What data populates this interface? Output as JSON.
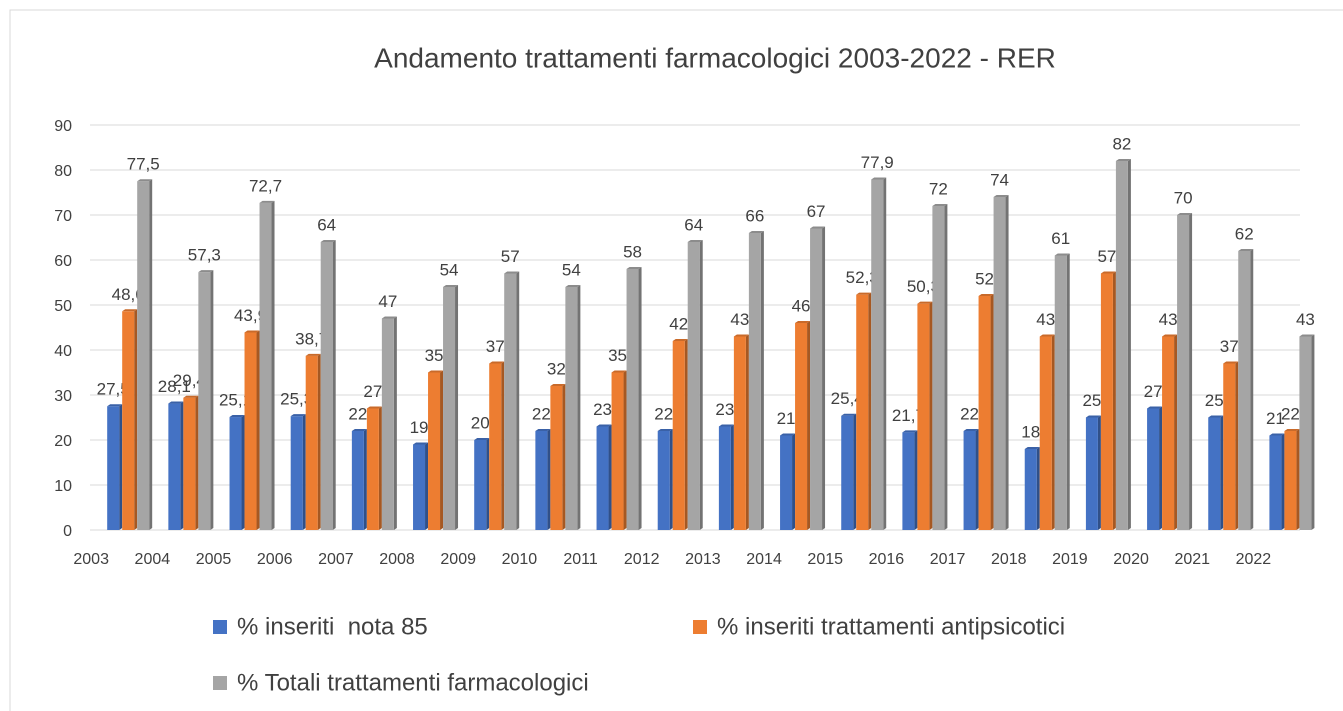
{
  "chart_data": {
    "type": "bar",
    "title": "Andamento trattamenti farmacologici 2003-2022 - RER",
    "categories": [
      "2003",
      "2004",
      "2005",
      "2006",
      "2007",
      "2008",
      "2009",
      "2010",
      "2011",
      "2012",
      "2013",
      "2014",
      "2015",
      "2016",
      "2017",
      "2018",
      "2019",
      "2020",
      "2021",
      "2022"
    ],
    "series": [
      {
        "name": "% inseriti  nota 85",
        "color": "#4472c4",
        "values": [
          27.5,
          28.1,
          25.1,
          25.3,
          22,
          19,
          20,
          22,
          23,
          22,
          23,
          21,
          25.4,
          21.7,
          22,
          18,
          25,
          27,
          25,
          21
        ],
        "value_labels": [
          "27,5",
          "28,1",
          "25,1",
          "25,3",
          "22",
          "19",
          "20",
          "22",
          "23",
          "22",
          "23",
          "21",
          "25,4",
          "21,7",
          "22",
          "18",
          "25",
          "27",
          "25",
          "21"
        ]
      },
      {
        "name": "% inseriti trattamenti antipsicotici",
        "color": "#ed7d31",
        "values": [
          48.6,
          29.4,
          43.9,
          38.7,
          27,
          35,
          37,
          32,
          35,
          42,
          43,
          46,
          52.3,
          50.3,
          52,
          43,
          57,
          43,
          37,
          22
        ],
        "value_labels": [
          "48,6",
          "29,4",
          "43,9",
          "38,7",
          "27",
          "35",
          "37",
          "32",
          "35",
          "42",
          "43",
          "46",
          "52,3",
          "50,3",
          "52",
          "43",
          "57",
          "43",
          "37",
          "22"
        ]
      },
      {
        "name": "% Totali trattamenti farmacologici",
        "color": "#a5a5a5",
        "values": [
          77.5,
          57.3,
          72.7,
          64,
          47,
          54,
          57,
          54,
          58,
          64,
          66,
          67,
          77.9,
          72,
          74,
          61,
          82,
          70,
          62,
          43
        ],
        "value_labels": [
          "77,5",
          "57,3",
          "72,7",
          "64",
          "47",
          "54",
          "57",
          "54",
          "58",
          "64",
          "66",
          "67",
          "77,9",
          "72",
          "74",
          "61",
          "82",
          "70",
          "62",
          "43"
        ]
      }
    ],
    "ylim": [
      0,
      90
    ],
    "yticks": [
      0,
      10,
      20,
      30,
      40,
      50,
      60,
      70,
      80,
      90
    ],
    "grid": true
  }
}
